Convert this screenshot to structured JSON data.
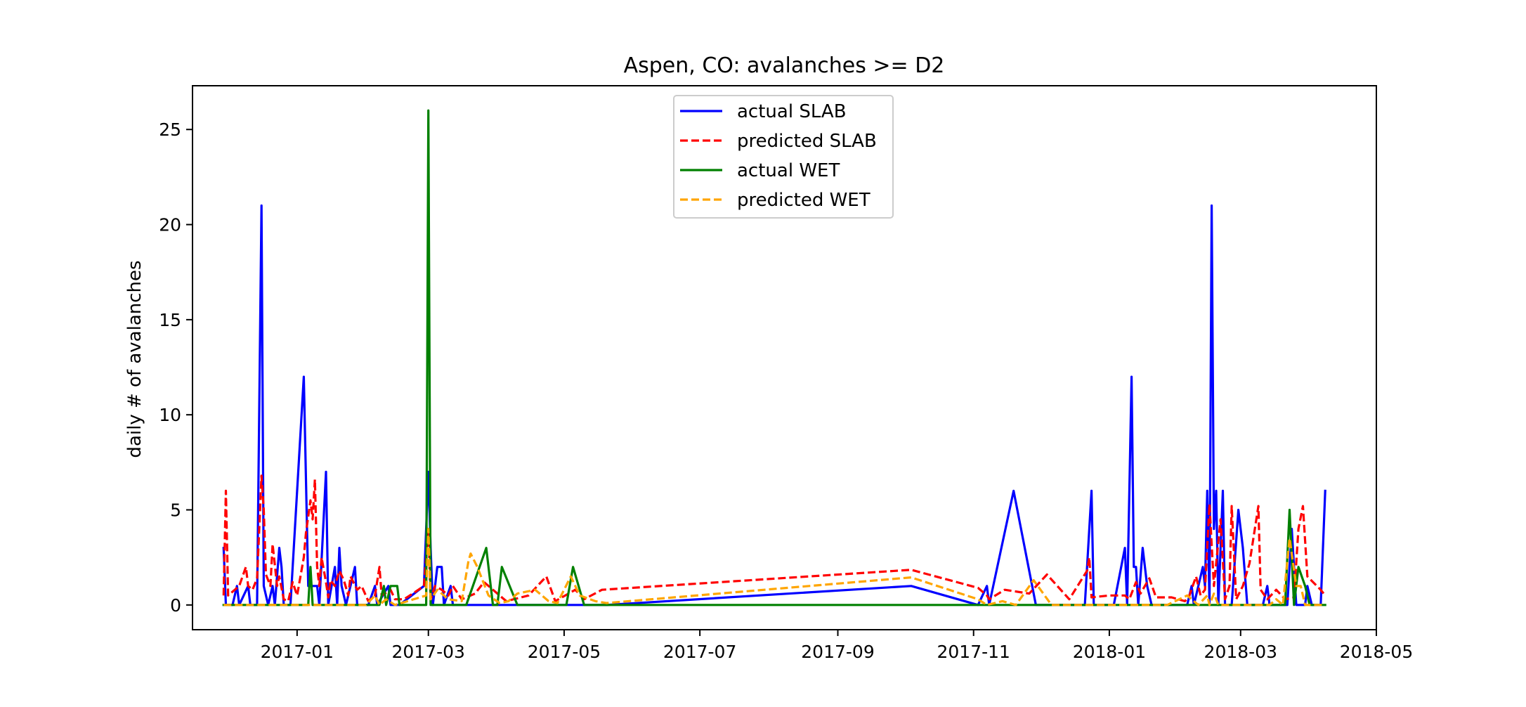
{
  "chart_data": {
    "type": "line",
    "title": "Aspen, CO: avalanches >= D2",
    "xlabel": "",
    "ylabel": "daily # of avalanches",
    "x_axis": "date",
    "xlim": [
      "2016-11-15",
      "2018-05-01"
    ],
    "ylim": [
      -1.3,
      27.3
    ],
    "x_ticks": [
      "2017-01",
      "2017-03",
      "2017-05",
      "2017-07",
      "2017-09",
      "2017-11",
      "2018-01",
      "2018-03",
      "2018-05"
    ],
    "y_ticks": [
      0,
      5,
      10,
      15,
      20,
      25
    ],
    "grid": false,
    "legend_position": "top-center",
    "series": [
      {
        "name": "actual SLAB",
        "color": "#0000ff",
        "style": "solid",
        "points": [
          [
            "2016-11-29",
            3
          ],
          [
            "2016-11-30",
            0
          ],
          [
            "2016-12-03",
            0
          ],
          [
            "2016-12-05",
            1
          ],
          [
            "2016-12-06",
            0
          ],
          [
            "2016-12-10",
            1
          ],
          [
            "2016-12-11",
            0
          ],
          [
            "2016-12-14",
            0
          ],
          [
            "2016-12-16",
            21
          ],
          [
            "2016-12-17",
            1
          ],
          [
            "2016-12-19",
            0
          ],
          [
            "2016-12-21",
            1
          ],
          [
            "2016-12-22",
            0
          ],
          [
            "2016-12-24",
            3
          ],
          [
            "2016-12-25",
            2
          ],
          [
            "2016-12-26",
            0
          ],
          [
            "2016-12-29",
            0
          ],
          [
            "2017-01-04",
            12
          ],
          [
            "2017-01-06",
            1
          ],
          [
            "2017-01-07",
            1
          ],
          [
            "2017-01-09",
            1
          ],
          [
            "2017-01-10",
            1
          ],
          [
            "2017-01-11",
            0
          ],
          [
            "2017-01-14",
            7
          ],
          [
            "2017-01-15",
            0
          ],
          [
            "2017-01-18",
            2
          ],
          [
            "2017-01-19",
            0
          ],
          [
            "2017-01-20",
            3
          ],
          [
            "2017-01-21",
            1
          ],
          [
            "2017-01-23",
            0
          ],
          [
            "2017-01-27",
            2
          ],
          [
            "2017-01-28",
            0
          ],
          [
            "2017-02-02",
            0
          ],
          [
            "2017-02-05",
            1
          ],
          [
            "2017-02-06",
            0
          ],
          [
            "2017-02-11",
            1
          ],
          [
            "2017-02-12",
            0
          ],
          [
            "2017-02-16",
            0
          ],
          [
            "2017-02-27",
            1
          ],
          [
            "2017-03-01",
            7
          ],
          [
            "2017-03-02",
            3
          ],
          [
            "2017-03-03",
            0
          ],
          [
            "2017-03-05",
            2
          ],
          [
            "2017-03-07",
            2
          ],
          [
            "2017-03-08",
            0
          ],
          [
            "2017-03-11",
            1
          ],
          [
            "2017-03-12",
            0
          ],
          [
            "2017-03-20",
            0
          ],
          [
            "2017-05-20",
            0
          ],
          [
            "2017-10-04",
            1
          ],
          [
            "2017-11-03",
            0
          ],
          [
            "2017-11-07",
            1
          ],
          [
            "2017-11-08",
            0
          ],
          [
            "2017-11-19",
            6
          ],
          [
            "2017-11-29",
            0
          ],
          [
            "2017-12-21",
            0
          ],
          [
            "2017-12-24",
            6
          ],
          [
            "2017-12-25",
            0
          ],
          [
            "2018-01-03",
            0
          ],
          [
            "2018-01-08",
            3
          ],
          [
            "2018-01-09",
            0
          ],
          [
            "2018-01-11",
            12
          ],
          [
            "2018-01-12",
            2
          ],
          [
            "2018-01-13",
            2
          ],
          [
            "2018-01-14",
            0
          ],
          [
            "2018-01-16",
            3
          ],
          [
            "2018-01-18",
            1
          ],
          [
            "2018-01-20",
            0
          ],
          [
            "2018-02-05",
            0
          ],
          [
            "2018-02-07",
            1
          ],
          [
            "2018-02-08",
            0
          ],
          [
            "2018-02-12",
            2
          ],
          [
            "2018-02-13",
            1
          ],
          [
            "2018-02-14",
            6
          ],
          [
            "2018-02-15",
            0
          ],
          [
            "2018-02-16",
            21
          ],
          [
            "2018-02-17",
            4
          ],
          [
            "2018-02-18",
            6
          ],
          [
            "2018-02-19",
            0
          ],
          [
            "2018-02-21",
            6
          ],
          [
            "2018-02-22",
            0
          ],
          [
            "2018-02-25",
            0
          ],
          [
            "2018-02-28",
            5
          ],
          [
            "2018-03-02",
            3
          ],
          [
            "2018-03-04",
            0
          ],
          [
            "2018-03-11",
            0
          ],
          [
            "2018-03-13",
            1
          ],
          [
            "2018-03-14",
            0
          ],
          [
            "2018-03-22",
            0
          ],
          [
            "2018-03-24",
            4
          ],
          [
            "2018-03-26",
            0
          ],
          [
            "2018-03-30",
            0
          ],
          [
            "2018-03-31",
            1
          ],
          [
            "2018-04-02",
            0
          ],
          [
            "2018-04-06",
            0
          ],
          [
            "2018-04-08",
            6
          ]
        ]
      },
      {
        "name": "predicted SLAB",
        "color": "#ff0000",
        "style": "dashed",
        "points": [
          [
            "2016-11-29",
            0.5
          ],
          [
            "2016-11-30",
            6
          ],
          [
            "2016-12-01",
            0.5
          ],
          [
            "2016-12-06",
            1
          ],
          [
            "2016-12-09",
            2
          ],
          [
            "2016-12-10",
            1
          ],
          [
            "2016-12-12",
            0.8
          ],
          [
            "2016-12-14",
            1.4
          ],
          [
            "2016-12-15",
            4
          ],
          [
            "2016-12-16",
            6.8
          ],
          [
            "2016-12-17",
            5
          ],
          [
            "2016-12-18",
            1.6
          ],
          [
            "2016-12-20",
            1
          ],
          [
            "2016-12-21",
            3.2
          ],
          [
            "2016-12-23",
            1
          ],
          [
            "2016-12-24",
            1.5
          ],
          [
            "2016-12-26",
            0.3
          ],
          [
            "2016-12-28",
            0.2
          ],
          [
            "2016-12-30",
            1.2
          ],
          [
            "2017-01-01",
            0.5
          ],
          [
            "2017-01-04",
            2.5
          ],
          [
            "2017-01-05",
            3.8
          ],
          [
            "2017-01-07",
            5.5
          ],
          [
            "2017-01-08",
            4.5
          ],
          [
            "2017-01-09",
            6.6
          ],
          [
            "2017-01-10",
            2
          ],
          [
            "2017-01-11",
            1
          ],
          [
            "2017-01-12",
            2.5
          ],
          [
            "2017-01-14",
            1.2
          ],
          [
            "2017-01-15",
            0.4
          ],
          [
            "2017-01-16",
            1.3
          ],
          [
            "2017-01-18",
            1
          ],
          [
            "2017-01-20",
            1.8
          ],
          [
            "2017-01-22",
            1.3
          ],
          [
            "2017-01-24",
            0.5
          ],
          [
            "2017-01-25",
            1.5
          ],
          [
            "2017-01-28",
            0.8
          ],
          [
            "2017-01-30",
            1
          ],
          [
            "2017-02-02",
            0.2
          ],
          [
            "2017-02-05",
            0.5
          ],
          [
            "2017-02-07",
            2
          ],
          [
            "2017-02-08",
            0.5
          ],
          [
            "2017-02-12",
            0.8
          ],
          [
            "2017-02-14",
            0.3
          ],
          [
            "2017-02-18",
            0.3
          ],
          [
            "2017-02-22",
            0.6
          ],
          [
            "2017-02-27",
            1
          ],
          [
            "2017-03-01",
            4
          ],
          [
            "2017-03-02",
            0.3
          ],
          [
            "2017-03-04",
            1
          ],
          [
            "2017-03-07",
            0.8
          ],
          [
            "2017-03-10",
            0.5
          ],
          [
            "2017-03-12",
            1
          ],
          [
            "2017-03-16",
            0.3
          ],
          [
            "2017-03-22",
            0.6
          ],
          [
            "2017-03-26",
            1.2
          ],
          [
            "2017-04-05",
            0.2
          ],
          [
            "2017-04-15",
            0.5
          ],
          [
            "2017-04-23",
            1.5
          ],
          [
            "2017-04-27",
            0.2
          ],
          [
            "2017-05-06",
            0.8
          ],
          [
            "2017-05-10",
            0.3
          ],
          [
            "2017-05-18",
            0.8
          ],
          [
            "2017-10-04",
            1.85
          ],
          [
            "2017-11-03",
            0.9
          ],
          [
            "2017-11-07",
            0.5
          ],
          [
            "2017-11-08",
            0.3
          ],
          [
            "2017-11-15",
            0.8
          ],
          [
            "2017-11-26",
            0.6
          ],
          [
            "2017-12-04",
            1.6
          ],
          [
            "2017-12-14",
            0.3
          ],
          [
            "2017-12-22",
            1.8
          ],
          [
            "2017-12-23",
            2.5
          ],
          [
            "2017-12-24",
            0.4
          ],
          [
            "2018-01-01",
            0.5
          ],
          [
            "2018-01-08",
            0.5
          ],
          [
            "2018-01-10",
            0.3
          ],
          [
            "2018-01-13",
            1.2
          ],
          [
            "2018-01-15",
            0.6
          ],
          [
            "2018-01-19",
            1.4
          ],
          [
            "2018-01-22",
            0.4
          ],
          [
            "2018-01-29",
            0.4
          ],
          [
            "2018-02-04",
            0.2
          ],
          [
            "2018-02-06",
            0.5
          ],
          [
            "2018-02-09",
            1.5
          ],
          [
            "2018-02-11",
            0.5
          ],
          [
            "2018-02-13",
            0.8
          ],
          [
            "2018-02-15",
            5.3
          ],
          [
            "2018-02-17",
            1
          ],
          [
            "2018-02-20",
            4.5
          ],
          [
            "2018-02-22",
            0.3
          ],
          [
            "2018-02-24",
            1
          ],
          [
            "2018-02-25",
            5.2
          ],
          [
            "2018-02-27",
            0.3
          ],
          [
            "2018-03-02",
            1
          ],
          [
            "2018-03-05",
            2.2
          ],
          [
            "2018-03-09",
            5.2
          ],
          [
            "2018-03-10",
            0.8
          ],
          [
            "2018-03-13",
            0.3
          ],
          [
            "2018-03-17",
            0.8
          ],
          [
            "2018-03-21",
            0.3
          ],
          [
            "2018-03-25",
            0.4
          ],
          [
            "2018-03-27",
            4
          ],
          [
            "2018-03-29",
            5.2
          ],
          [
            "2018-03-31",
            1.5
          ],
          [
            "2018-04-06",
            0.8
          ],
          [
            "2018-04-08",
            0.5
          ]
        ]
      },
      {
        "name": "actual WET",
        "color": "#008000",
        "style": "solid",
        "points": [
          [
            "2016-11-29",
            0
          ],
          [
            "2017-01-06",
            0
          ],
          [
            "2017-01-07",
            2
          ],
          [
            "2017-01-08",
            0
          ],
          [
            "2017-02-07",
            0
          ],
          [
            "2017-02-09",
            1
          ],
          [
            "2017-02-10",
            0
          ],
          [
            "2017-02-12",
            1
          ],
          [
            "2017-02-15",
            1
          ],
          [
            "2017-02-16",
            0
          ],
          [
            "2017-02-28",
            0
          ],
          [
            "2017-03-01",
            26
          ],
          [
            "2017-03-02",
            0
          ],
          [
            "2017-03-18",
            0
          ],
          [
            "2017-03-21",
            1
          ],
          [
            "2017-03-27",
            3
          ],
          [
            "2017-03-30",
            0
          ],
          [
            "2017-04-01",
            0
          ],
          [
            "2017-04-03",
            2
          ],
          [
            "2017-04-10",
            0
          ],
          [
            "2017-05-02",
            0
          ],
          [
            "2017-05-05",
            2
          ],
          [
            "2017-05-10",
            0
          ],
          [
            "2018-03-21",
            0
          ],
          [
            "2018-03-23",
            5
          ],
          [
            "2018-03-25",
            0
          ],
          [
            "2018-03-27",
            2
          ],
          [
            "2018-03-30",
            1
          ],
          [
            "2018-04-01",
            0
          ],
          [
            "2018-04-08",
            0
          ]
        ]
      },
      {
        "name": "predicted WET",
        "color": "#ffa500",
        "style": "dashed",
        "points": [
          [
            "2016-11-29",
            0
          ],
          [
            "2017-02-01",
            0
          ],
          [
            "2017-02-05",
            0.5
          ],
          [
            "2017-02-07",
            0
          ],
          [
            "2017-02-10",
            0.3
          ],
          [
            "2017-02-14",
            0
          ],
          [
            "2017-02-28",
            0.5
          ],
          [
            "2017-03-01",
            4
          ],
          [
            "2017-03-02",
            0.3
          ],
          [
            "2017-03-05",
            0.8
          ],
          [
            "2017-03-10",
            0.3
          ],
          [
            "2017-03-16",
            0.2
          ],
          [
            "2017-03-19",
            2.3
          ],
          [
            "2017-03-20",
            2.7
          ],
          [
            "2017-03-23",
            2
          ],
          [
            "2017-03-28",
            0.5
          ],
          [
            "2017-04-02",
            0.1
          ],
          [
            "2017-04-06",
            0.2
          ],
          [
            "2017-04-10",
            0.6
          ],
          [
            "2017-04-18",
            0.8
          ],
          [
            "2017-04-24",
            0.2
          ],
          [
            "2017-04-28",
            0.1
          ],
          [
            "2017-05-04",
            1.5
          ],
          [
            "2017-05-08",
            0.5
          ],
          [
            "2017-05-15",
            0.2
          ],
          [
            "2017-05-20",
            0.1
          ],
          [
            "2017-10-04",
            1.45
          ],
          [
            "2017-11-03",
            0.3
          ],
          [
            "2017-11-07",
            0
          ],
          [
            "2017-11-14",
            0.2
          ],
          [
            "2017-11-20",
            0
          ],
          [
            "2017-11-28",
            1.3
          ],
          [
            "2017-12-06",
            0
          ],
          [
            "2018-01-27",
            0
          ],
          [
            "2018-02-05",
            0.5
          ],
          [
            "2018-02-10",
            0
          ],
          [
            "2018-02-14",
            0.5
          ],
          [
            "2018-02-15",
            0
          ],
          [
            "2018-02-17",
            0.6
          ],
          [
            "2018-02-19",
            0
          ],
          [
            "2018-03-14",
            0
          ],
          [
            "2018-03-17",
            0.3
          ],
          [
            "2018-03-20",
            0
          ],
          [
            "2018-03-23",
            3.5
          ],
          [
            "2018-03-26",
            1
          ],
          [
            "2018-03-28",
            1
          ],
          [
            "2018-03-30",
            0
          ],
          [
            "2018-04-08",
            0
          ]
        ]
      }
    ]
  }
}
